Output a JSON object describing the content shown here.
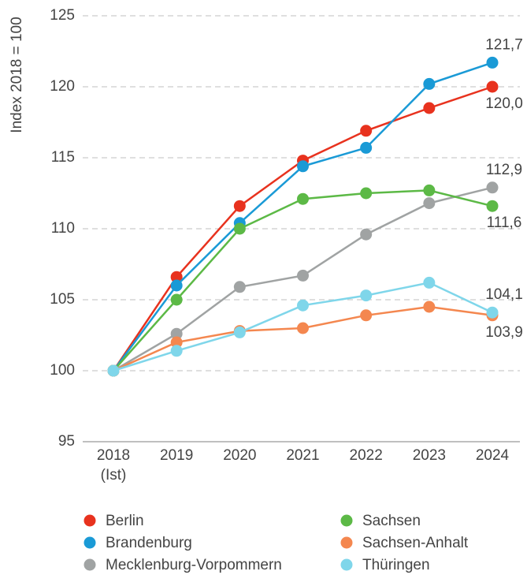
{
  "chart_data": {
    "type": "line",
    "y_label": "Index 2018 = 100",
    "categories": [
      "2018\n(Ist)",
      "2019",
      "2020",
      "2021",
      "2022",
      "2023",
      "2024"
    ],
    "series": [
      {
        "name": "Berlin",
        "color": "#e8321e",
        "values": [
          100,
          106.6,
          111.6,
          114.8,
          116.9,
          118.5,
          120.0
        ],
        "value_labels": [
          null,
          null,
          null,
          null,
          null,
          null,
          "120,0"
        ]
      },
      {
        "name": "Brandenburg",
        "color": "#1a9ad6",
        "values": [
          100,
          106.0,
          110.4,
          114.4,
          115.7,
          120.2,
          121.7
        ],
        "value_labels": [
          null,
          null,
          null,
          null,
          null,
          null,
          "121,7"
        ]
      },
      {
        "name": "Mecklenburg-Vorpommern",
        "color": "#a0a3a3",
        "values": [
          100,
          102.6,
          105.9,
          106.7,
          109.6,
          111.8,
          112.9
        ],
        "value_labels": [
          null,
          null,
          null,
          null,
          null,
          null,
          "112,9"
        ]
      },
      {
        "name": "Sachsen",
        "color": "#5cb946",
        "values": [
          100,
          105.0,
          110.0,
          112.1,
          112.5,
          112.7,
          111.6
        ],
        "value_labels": [
          null,
          null,
          null,
          null,
          null,
          null,
          "111,6"
        ]
      },
      {
        "name": "Sachsen-Anhalt",
        "color": "#f4874f",
        "values": [
          100,
          102.0,
          102.8,
          103.0,
          103.9,
          104.5,
          103.9
        ],
        "value_labels": [
          null,
          null,
          null,
          null,
          null,
          null,
          "103,9"
        ]
      },
      {
        "name": "Thüringen",
        "color": "#7fd6ea",
        "values": [
          100,
          101.4,
          102.7,
          104.6,
          105.3,
          106.2,
          104.1
        ],
        "value_labels": [
          null,
          null,
          null,
          null,
          null,
          null,
          "104,1"
        ]
      }
    ],
    "ylim": [
      95,
      125
    ],
    "yticks": [
      95,
      100,
      105,
      110,
      115,
      120,
      125
    ],
    "grid": true
  }
}
